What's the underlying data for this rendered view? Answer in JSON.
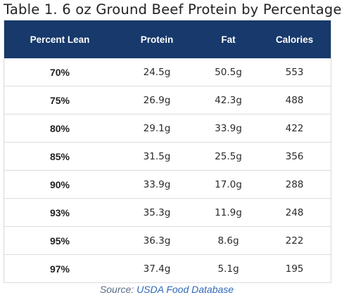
{
  "title": "Table 1. 6 oz Ground Beef Protein by Percentage",
  "table": {
    "headers": [
      "Percent Lean",
      "Protein",
      "Fat",
      "Calories"
    ],
    "rows": [
      [
        "70%",
        "24.5g",
        "50.5g",
        "553"
      ],
      [
        "75%",
        "26.9g",
        "42.3g",
        "488"
      ],
      [
        "80%",
        "29.1g",
        "33.9g",
        "422"
      ],
      [
        "85%",
        "31.5g",
        "25.5g",
        "356"
      ],
      [
        "90%",
        "33.9g",
        "17.0g",
        "288"
      ],
      [
        "93%",
        "35.3g",
        "11.9g",
        "248"
      ],
      [
        "95%",
        "36.3g",
        "8.6g",
        "222"
      ],
      [
        "97%",
        "37.4g",
        "5.1g",
        "195"
      ]
    ]
  },
  "source": {
    "prefix": "Source: ",
    "link_text": "USDA Food Database"
  },
  "colors": {
    "header_background": "#17396b",
    "header_text": "#ffffff",
    "link": "#2f68b8"
  }
}
